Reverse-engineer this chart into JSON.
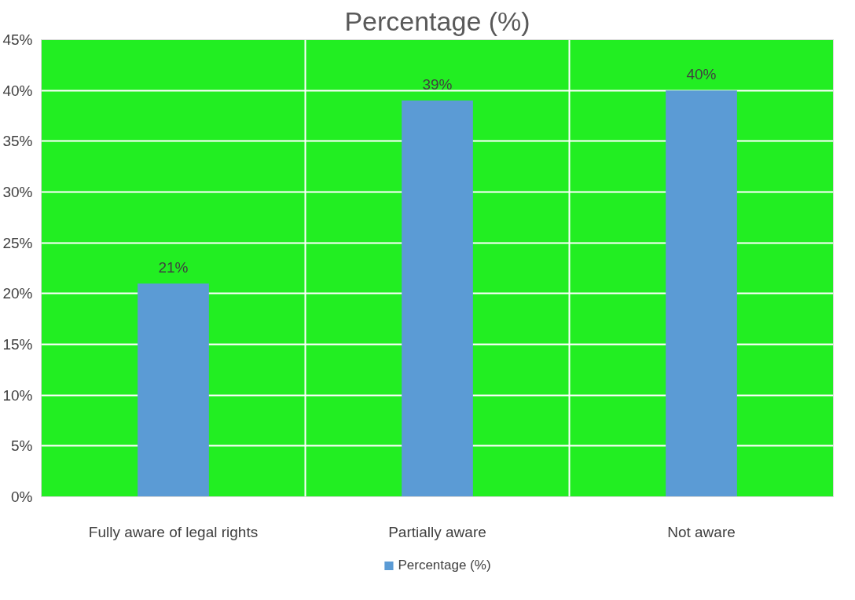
{
  "chart_data": {
    "type": "bar",
    "title": "Percentage (%)",
    "categories": [
      "Fully aware of legal rights",
      "Partially aware",
      "Not aware"
    ],
    "series": [
      {
        "name": "Percentage (%)",
        "color": "#5b9bd5",
        "values": [
          21,
          39,
          40
        ],
        "value_labels": [
          "21%",
          "39%",
          "40%"
        ]
      }
    ],
    "ylim": [
      0,
      45
    ],
    "yticks": [
      {
        "value": 0,
        "label": "0%"
      },
      {
        "value": 5,
        "label": "5%"
      },
      {
        "value": 10,
        "label": "10%"
      },
      {
        "value": 15,
        "label": "15%"
      },
      {
        "value": 20,
        "label": "20%"
      },
      {
        "value": 25,
        "label": "25%"
      },
      {
        "value": 30,
        "label": "30%"
      },
      {
        "value": 35,
        "label": "35%"
      },
      {
        "value": 40,
        "label": "40%"
      },
      {
        "value": 45,
        "label": "45%"
      }
    ],
    "grid": true,
    "legend": "bottom"
  }
}
